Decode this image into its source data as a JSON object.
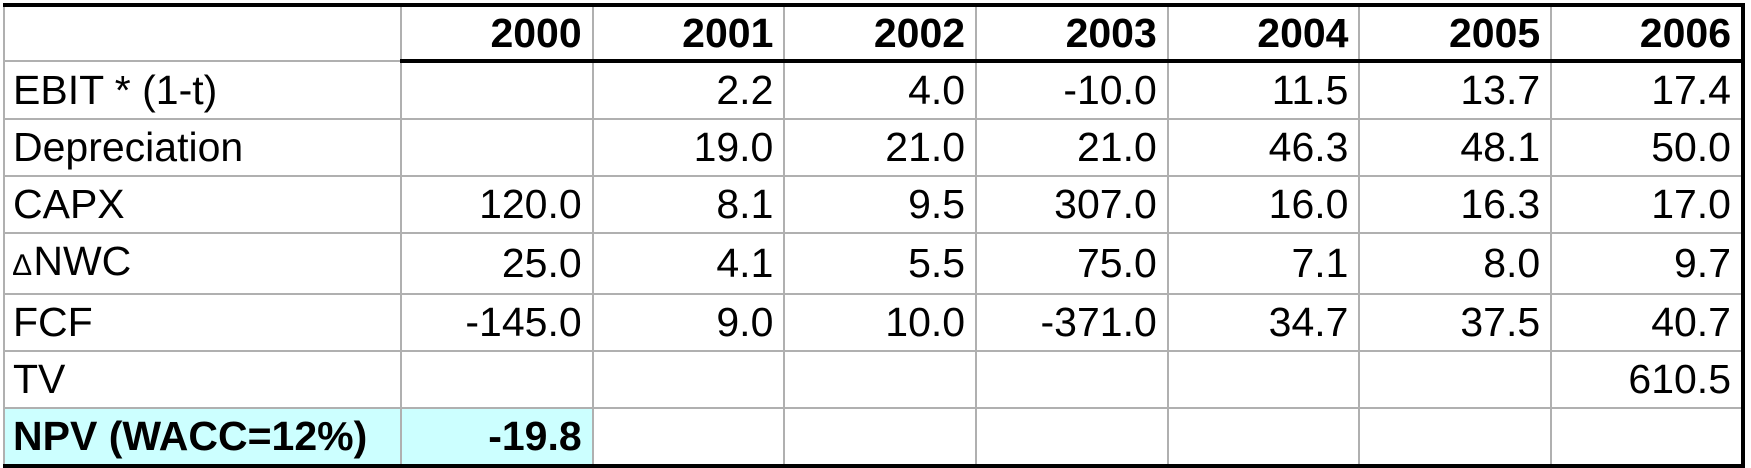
{
  "table": {
    "header": {
      "corner": "",
      "years": [
        "2000",
        "2001",
        "2002",
        "2003",
        "2004",
        "2005",
        "2006"
      ]
    },
    "rows": {
      "ebit": {
        "label": "EBIT * (1-t)",
        "values": [
          "",
          "2.2",
          "4.0",
          "-10.0",
          "11.5",
          "13.7",
          "17.4"
        ]
      },
      "depreciation": {
        "label": "Depreciation",
        "values": [
          "",
          "19.0",
          "21.0",
          "21.0",
          "46.3",
          "48.1",
          "50.0"
        ]
      },
      "capx": {
        "label": "CAPX",
        "values": [
          "120.0",
          "8.1",
          "9.5",
          "307.0",
          "16.0",
          "16.3",
          "17.0"
        ]
      },
      "nwc": {
        "delta_symbol": "∆",
        "label": "NWC",
        "values": [
          "25.0",
          "4.1",
          "5.5",
          "75.0",
          "7.1",
          "8.0",
          "9.7"
        ]
      },
      "fcf": {
        "label": "FCF",
        "values": [
          "-145.0",
          "9.0",
          "10.0",
          "-371.0",
          "34.7",
          "37.5",
          "40.7"
        ]
      },
      "tv": {
        "label": "TV",
        "values": [
          "",
          "",
          "",
          "",
          "",
          "",
          "610.5"
        ]
      },
      "npv": {
        "label": "NPV (WACC=12%)",
        "values": [
          "-19.8",
          "",
          "",
          "",
          "",
          "",
          ""
        ]
      }
    },
    "colors": {
      "npv_highlight": "#ccffff",
      "grid": "#b0b0b0",
      "rule": "#000000"
    }
  }
}
